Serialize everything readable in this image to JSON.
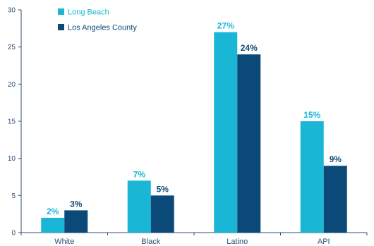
{
  "chart_data": {
    "type": "bar",
    "categories": [
      "White",
      "Black",
      "Latino",
      "API"
    ],
    "series": [
      {
        "name": "Long Beach",
        "values": [
          2,
          7,
          27,
          15
        ],
        "labels": [
          "2%",
          "7%",
          "27%",
          "15%"
        ],
        "color": "#1ab6d6"
      },
      {
        "name": "Los Angeles County",
        "values": [
          3,
          5,
          24,
          9
        ],
        "labels": [
          "3%",
          "5%",
          "24%",
          "9%"
        ],
        "color": "#0b4a78"
      }
    ],
    "ylim": [
      0,
      30
    ],
    "yticks": [
      0,
      5,
      10,
      15,
      20,
      25,
      30
    ],
    "grid": false,
    "legend": "top-left",
    "title": "",
    "xlabel": "",
    "ylabel": ""
  },
  "colors": {
    "axis": "#2f4f6f"
  }
}
